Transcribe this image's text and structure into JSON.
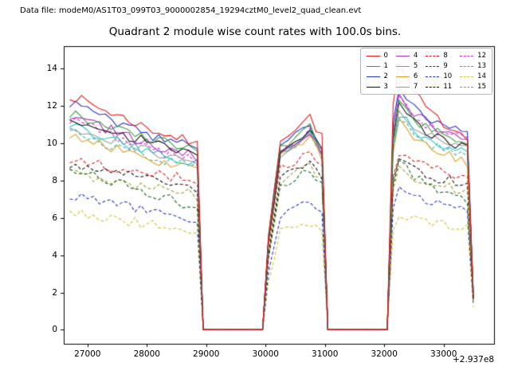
{
  "figure": {
    "data_file_label": "Data file: modeM0/AS1T03_099T03_9000002854_19294cztM0_level2_quad_clean.evt"
  },
  "chart_data": {
    "type": "line",
    "title": "Quadrant 2 module wise count rates with 100.0s bins.",
    "xlabel": "",
    "ylabel": "",
    "x_offset_label": "+2.937e8",
    "xlim": [
      26600,
      33850
    ],
    "ylim": [
      -0.75,
      15.2
    ],
    "xticks": [
      27000,
      28000,
      29000,
      30000,
      31000,
      32000,
      33000
    ],
    "yticks": [
      0,
      2,
      4,
      6,
      8,
      10,
      12,
      14
    ],
    "grid": false,
    "legend": {
      "position": "upper right",
      "ncol": 4
    },
    "x": [
      26700,
      26900,
      27200,
      27500,
      27800,
      28100,
      28400,
      28700,
      28850,
      28950,
      29950,
      30050,
      30250,
      30500,
      30750,
      30950,
      31050,
      32050,
      32150,
      32250,
      32500,
      32800,
      33100,
      33400,
      33500
    ],
    "series": [
      {
        "name": "0",
        "color": "#e41a1c",
        "dash": false,
        "values": [
          12.6,
          12.3,
          11.9,
          11.5,
          11.1,
          10.7,
          10.4,
          10.1,
          9.9,
          0,
          0,
          5.1,
          10.3,
          10.8,
          11.4,
          10.3,
          0,
          0,
          12.1,
          14.2,
          12.7,
          11.5,
          10.9,
          10.4,
          2.1
        ]
      },
      {
        "name": "1",
        "color": "#3ca13c",
        "dash": false,
        "values": [
          11.6,
          11.4,
          11.1,
          10.8,
          10.5,
          10.2,
          10.0,
          9.7,
          9.6,
          0,
          0,
          4.9,
          9.7,
          10.3,
          10.8,
          9.7,
          0,
          0,
          10.4,
          12.2,
          11.3,
          10.7,
          10.3,
          10.0,
          2.0
        ]
      },
      {
        "name": "2",
        "color": "#2433cf",
        "dash": false,
        "values": [
          12.1,
          11.9,
          11.5,
          11.1,
          10.8,
          10.4,
          10.1,
          9.9,
          9.7,
          0,
          0,
          5.0,
          9.9,
          10.5,
          11.0,
          9.9,
          0,
          0,
          11.1,
          13.0,
          12.0,
          11.3,
          10.9,
          10.6,
          2.2
        ]
      },
      {
        "name": "3",
        "color": "#111111",
        "dash": false,
        "values": [
          11.3,
          11.1,
          10.8,
          10.5,
          10.3,
          10.0,
          9.7,
          9.5,
          9.4,
          0,
          0,
          4.8,
          9.5,
          10.1,
          10.6,
          9.5,
          0,
          0,
          10.2,
          12.0,
          11.1,
          10.5,
          10.1,
          9.8,
          1.9
        ]
      },
      {
        "name": "4",
        "color": "#b030c0",
        "dash": false,
        "values": [
          11.5,
          11.3,
          10.9,
          10.6,
          10.2,
          9.9,
          9.6,
          9.4,
          9.2,
          0,
          0,
          4.8,
          9.6,
          10.2,
          10.7,
          9.6,
          0,
          0,
          10.6,
          12.5,
          11.6,
          10.9,
          10.5,
          10.2,
          2.0
        ]
      },
      {
        "name": "5",
        "color": "#2bbfcf",
        "dash": false,
        "values": [
          10.9,
          10.7,
          10.4,
          10.1,
          9.8,
          9.5,
          9.3,
          9.0,
          8.9,
          0,
          0,
          4.7,
          9.4,
          9.9,
          10.4,
          9.4,
          0,
          0,
          9.9,
          11.6,
          10.7,
          10.1,
          9.7,
          9.4,
          1.9
        ]
      },
      {
        "name": "6",
        "color": "#e0a020",
        "dash": false,
        "values": [
          10.4,
          10.2,
          10.0,
          9.7,
          9.4,
          9.1,
          8.9,
          8.7,
          8.6,
          0,
          0,
          4.6,
          9.2,
          9.7,
          10.2,
          9.2,
          0,
          0,
          9.5,
          11.2,
          10.3,
          9.7,
          9.3,
          9.0,
          1.8
        ]
      },
      {
        "name": "7",
        "color": "#9a9a9a",
        "dash": false,
        "values": [
          10.8,
          10.6,
          10.4,
          10.1,
          9.8,
          9.5,
          9.3,
          9.1,
          9.0,
          0,
          0,
          4.7,
          9.5,
          10.0,
          10.5,
          9.5,
          0,
          0,
          10.0,
          11.8,
          10.9,
          10.3,
          9.9,
          9.6,
          1.9
        ]
      },
      {
        "name": "8",
        "color": "#e41a1c",
        "dash": true,
        "values": [
          9.2,
          9.1,
          8.9,
          8.7,
          8.5,
          8.4,
          8.2,
          8.1,
          8.0,
          0,
          0,
          4.3,
          8.6,
          9.1,
          9.6,
          8.7,
          0,
          0,
          8.2,
          9.6,
          9.0,
          8.6,
          8.4,
          8.2,
          1.8
        ]
      },
      {
        "name": "9",
        "color": "#176617",
        "dash": true,
        "values": [
          8.7,
          8.5,
          8.2,
          7.9,
          7.5,
          7.2,
          7.0,
          6.7,
          6.6,
          0,
          0,
          3.8,
          7.7,
          8.1,
          8.5,
          7.7,
          0,
          0,
          7.7,
          9.0,
          8.2,
          7.6,
          7.2,
          7.0,
          1.7
        ]
      },
      {
        "name": "10",
        "color": "#2433cf",
        "dash": true,
        "values": [
          7.2,
          7.1,
          6.9,
          6.7,
          6.5,
          6.3,
          6.1,
          6.0,
          5.9,
          0,
          0,
          3.1,
          6.1,
          6.5,
          6.8,
          6.2,
          0,
          0,
          6.5,
          7.6,
          7.1,
          6.8,
          6.5,
          6.4,
          1.6
        ]
      },
      {
        "name": "11",
        "color": "#111111",
        "dash": true,
        "values": [
          8.9,
          8.8,
          8.6,
          8.4,
          8.2,
          8.0,
          7.8,
          7.7,
          7.6,
          0,
          0,
          4.0,
          8.1,
          8.6,
          9.0,
          8.2,
          0,
          0,
          8.0,
          9.4,
          8.7,
          8.2,
          8.0,
          7.8,
          1.8
        ]
      },
      {
        "name": "12",
        "color": "#e02ad6",
        "dash": true,
        "values": [
          11.2,
          11.0,
          10.7,
          10.3,
          10.0,
          9.7,
          9.4,
          9.2,
          9.0,
          0,
          0,
          4.8,
          9.5,
          10.1,
          10.6,
          9.6,
          0,
          0,
          10.5,
          12.3,
          11.4,
          10.8,
          10.4,
          10.1,
          2.0
        ]
      },
      {
        "name": "13",
        "color": "#27b3a4",
        "dash": true,
        "values": [
          10.6,
          10.4,
          10.1,
          9.8,
          9.6,
          9.3,
          9.0,
          8.8,
          8.7,
          0,
          0,
          4.6,
          9.3,
          9.8,
          10.3,
          9.3,
          0,
          0,
          9.7,
          11.4,
          10.5,
          9.9,
          9.5,
          9.2,
          1.9
        ]
      },
      {
        "name": "14",
        "color": "#cfc42a",
        "dash": true,
        "values": [
          6.3,
          6.2,
          6.1,
          5.9,
          5.8,
          5.6,
          5.5,
          5.4,
          5.3,
          0,
          0,
          2.6,
          5.2,
          5.5,
          5.8,
          5.3,
          0,
          0,
          5.3,
          6.2,
          5.9,
          5.7,
          5.6,
          5.5,
          1.4
        ]
      },
      {
        "name": "15",
        "color": "#9c9c30",
        "dash": true,
        "values": [
          8.4,
          8.3,
          8.1,
          7.9,
          7.7,
          7.6,
          7.4,
          7.3,
          7.2,
          0,
          0,
          3.9,
          7.9,
          8.4,
          8.8,
          8.0,
          0,
          0,
          7.5,
          8.8,
          8.2,
          7.8,
          7.6,
          7.4,
          1.7
        ]
      }
    ]
  }
}
